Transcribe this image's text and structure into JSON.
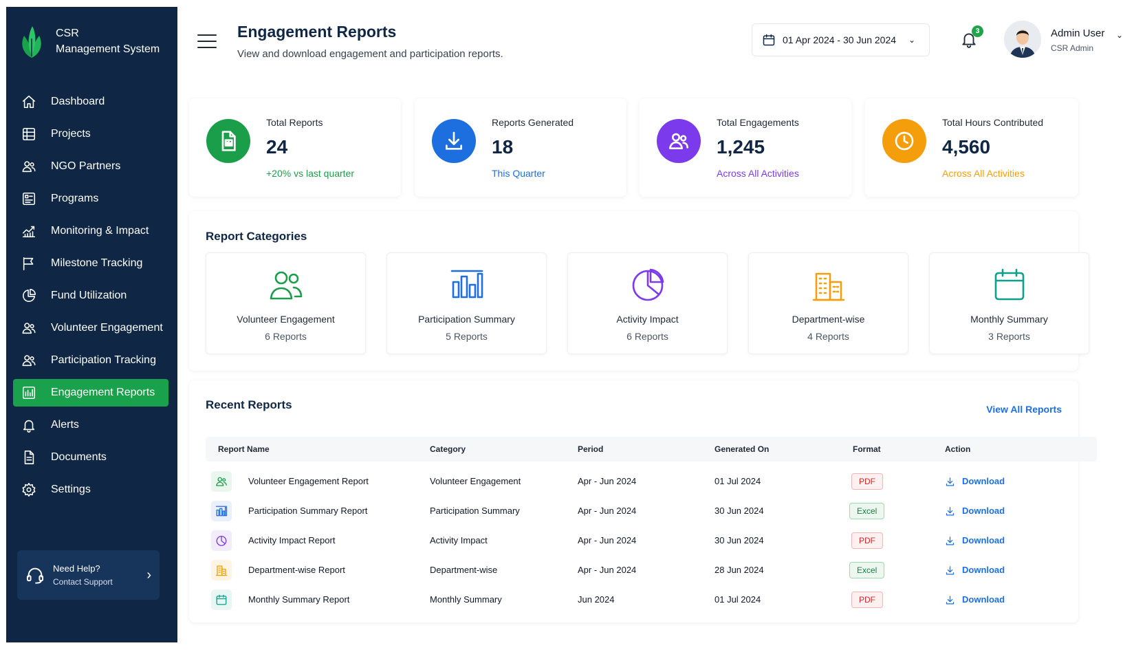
{
  "brand": {
    "line1": "CSR",
    "line2": "Management System"
  },
  "sidebar": {
    "items": [
      {
        "label": "Dashboard",
        "icon": "home-icon"
      },
      {
        "label": "Projects",
        "icon": "projects-icon"
      },
      {
        "label": "NGO Partners",
        "icon": "partners-icon"
      },
      {
        "label": "Programs",
        "icon": "programs-icon"
      },
      {
        "label": "Monitoring & Impact",
        "icon": "chart-line-icon"
      },
      {
        "label": "Milestone Tracking",
        "icon": "flag-icon"
      },
      {
        "label": "Fund Utilization",
        "icon": "pie-icon"
      },
      {
        "label": "Volunteer Engagement",
        "icon": "users-icon"
      },
      {
        "label": "Participation Tracking",
        "icon": "users-icon"
      },
      {
        "label": "Engagement Reports",
        "icon": "bar-report-icon",
        "active": true
      },
      {
        "label": "Alerts",
        "icon": "bell-icon"
      },
      {
        "label": "Documents",
        "icon": "document-icon"
      },
      {
        "label": "Settings",
        "icon": "gear-icon"
      }
    ],
    "help": {
      "title": "Need Help?",
      "subtitle": "Contact Support"
    }
  },
  "header": {
    "title": "Engagement Reports",
    "subtitle": "View and download engagement and participation reports.",
    "date_range": "01 Apr 2024 - 30 Jun 2024",
    "notification_count": "3",
    "user_name": "Admin User",
    "user_role": "CSR Admin"
  },
  "stats": [
    {
      "label": "Total Reports",
      "value": "24",
      "note": "+20% vs last quarter",
      "color": "#1a9e4a"
    },
    {
      "label": "Reports Generated",
      "value": "18",
      "note": "This Quarter",
      "color": "#1d6fe0"
    },
    {
      "label": "Total Engagements",
      "value": "1,245",
      "note": "Across All Activities",
      "color": "#7c3aed"
    },
    {
      "label": "Total Hours Contributed",
      "value": "4,560",
      "note": "Across All Activities",
      "color": "#f59e0b"
    }
  ],
  "categories": {
    "title": "Report Categories",
    "items": [
      {
        "name": "Volunteer Engagement",
        "count": "6 Reports",
        "color": "#1a9e4a"
      },
      {
        "name": "Participation Summary",
        "count": "5 Reports",
        "color": "#1d6fe0"
      },
      {
        "name": "Activity Impact",
        "count": "6 Reports",
        "color": "#7c3aed"
      },
      {
        "name": "Department-wise",
        "count": "4 Reports",
        "color": "#f59e0b"
      },
      {
        "name": "Monthly Summary",
        "count": "3 Reports",
        "color": "#0e9f8e"
      }
    ]
  },
  "recent": {
    "title": "Recent Reports",
    "view_all": "View All Reports",
    "columns": [
      "Report Name",
      "Category",
      "Period",
      "Generated On",
      "Format",
      "Action"
    ],
    "rows": [
      {
        "name": "Volunteer Engagement Report",
        "category": "Volunteer Engagement",
        "period": "Apr - Jun 2024",
        "generated": "01 Jul 2024",
        "format": "PDF",
        "action": "Download"
      },
      {
        "name": "Participation Summary Report",
        "category": "Participation Summary",
        "period": "Apr - Jun 2024",
        "generated": "30 Jun 2024",
        "format": "Excel",
        "action": "Download"
      },
      {
        "name": "Activity Impact Report",
        "category": "Activity Impact",
        "period": "Apr - Jun 2024",
        "generated": "30 Jun 2024",
        "format": "PDF",
        "action": "Download"
      },
      {
        "name": "Department-wise Report",
        "category": "Department-wise",
        "period": "Apr - Jun 2024",
        "generated": "28 Jun 2024",
        "format": "Excel",
        "action": "Download"
      },
      {
        "name": "Monthly Summary Report",
        "category": "Monthly Summary",
        "period": "Jun 2024",
        "generated": "01 Jul 2024",
        "format": "PDF",
        "action": "Download"
      }
    ]
  }
}
